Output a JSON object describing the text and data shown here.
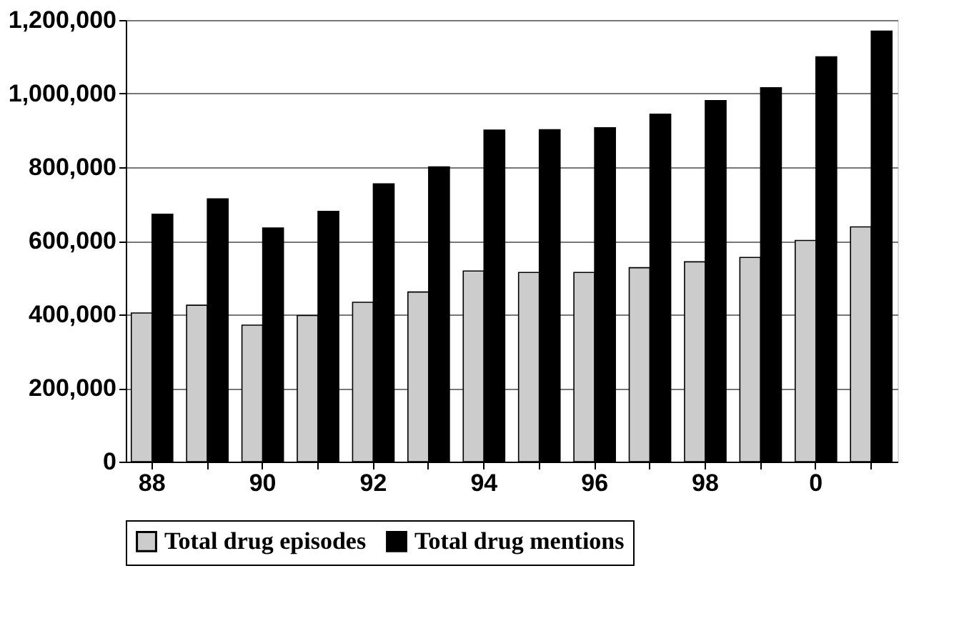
{
  "chart_data": {
    "type": "bar",
    "categories": [
      "88",
      null,
      "90",
      null,
      "92",
      null,
      "94",
      null,
      "96",
      null,
      "98",
      null,
      "0",
      null
    ],
    "series": [
      {
        "name": "Total drug episodes",
        "color": "#cccccc",
        "values": [
          404000,
          425000,
          371000,
          397000,
          433000,
          461000,
          518000,
          514000,
          514000,
          527000,
          543000,
          555000,
          601000,
          638000
        ]
      },
      {
        "name": "Total drug mentions",
        "color": "#000000",
        "values": [
          672000,
          714000,
          635000,
          680000,
          755000,
          801000,
          901000,
          902000,
          907000,
          944000,
          981000,
          1016000,
          1100000,
          1170000
        ]
      }
    ],
    "ylim": [
      0,
      1200000
    ],
    "yticks": [
      0,
      {
        "value": 200000,
        "label": "200,000"
      },
      {
        "value": 400000,
        "label": "400,000"
      },
      {
        "value": 600000,
        "label": "600,000"
      },
      {
        "value": 800000,
        "label": "800,000"
      },
      {
        "value": 1000000,
        "label": "1,000,000"
      },
      {
        "value": 1200000,
        "label": "1,200,000"
      }
    ],
    "grid": "y",
    "legend": "bottom"
  }
}
